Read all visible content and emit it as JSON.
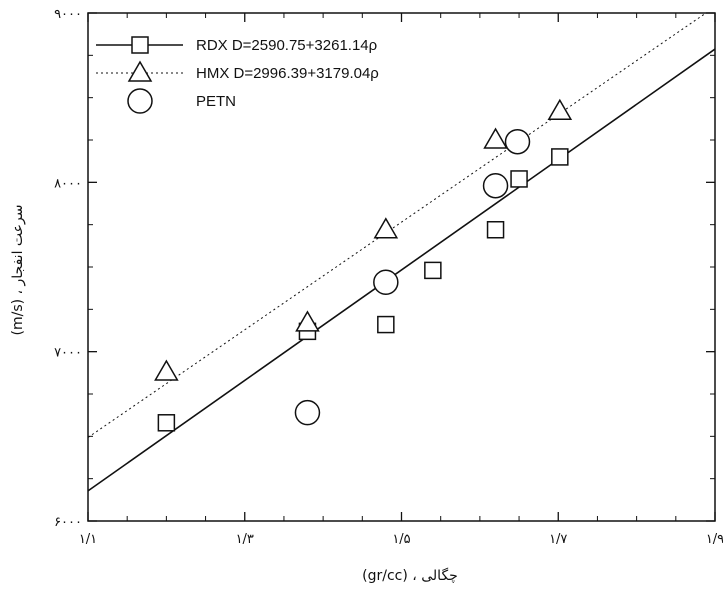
{
  "chart_data": {
    "type": "scatter",
    "x_ticks": [
      "۱/۱",
      "۱/۳",
      "۱/۵",
      "۱/۷",
      "۱/۹"
    ],
    "y_ticks": [
      "۶۰۰۰",
      "۷۰۰۰",
      "۸۰۰۰",
      "۹۰۰۰"
    ],
    "xlim": [
      1.1,
      1.9
    ],
    "ylim": [
      6000,
      9000
    ],
    "xlabel": "(gr/cc) ، چگالی",
    "ylabel": "(m/s) ، سرعت انفجار",
    "legend_position": "top-left",
    "grid": false,
    "series": [
      {
        "name": "RDX",
        "legend": "RDX  D=2590.75+3261.14ρ",
        "marker": "square",
        "points": [
          [
            1.2,
            6580
          ],
          [
            1.38,
            7120
          ],
          [
            1.48,
            7160
          ],
          [
            1.54,
            7480
          ],
          [
            1.62,
            7720
          ],
          [
            1.65,
            8020
          ],
          [
            1.702,
            8150
          ]
        ],
        "fit": {
          "intercept": 2590.75,
          "slope": 3261.14,
          "style": "solid"
        }
      },
      {
        "name": "HMX",
        "legend": "HMX  D=2996.39+3179.04ρ",
        "marker": "triangle",
        "points": [
          [
            1.2,
            6880
          ],
          [
            1.38,
            7170
          ],
          [
            1.48,
            7720
          ],
          [
            1.62,
            8250
          ],
          [
            1.702,
            8420
          ]
        ],
        "fit": {
          "intercept": 2996.39,
          "slope": 3179.04,
          "style": "dotted"
        }
      },
      {
        "name": "PETN",
        "legend": "PETN",
        "marker": "circle",
        "points": [
          [
            1.38,
            6640
          ],
          [
            1.48,
            7410
          ],
          [
            1.62,
            7980
          ],
          [
            1.648,
            8240
          ]
        ]
      }
    ]
  }
}
